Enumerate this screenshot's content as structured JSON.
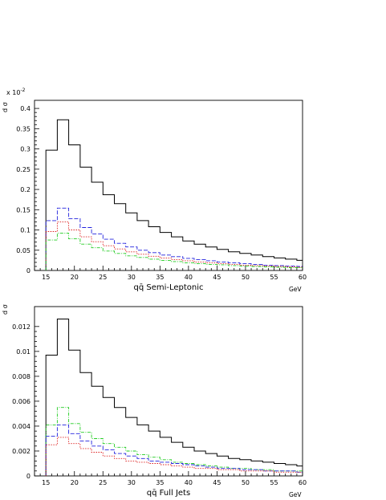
{
  "chart_data": [
    {
      "type": "line",
      "style": "step-histogram",
      "y_title": "d σ",
      "y_multiplier": "x 10^-2",
      "xlabel": "qq̄ Semi-Leptonic",
      "x_unit": "GeV",
      "xlim": [
        13,
        60
      ],
      "ylim": [
        0,
        0.42
      ],
      "x_ticks": [
        15,
        20,
        25,
        30,
        35,
        40,
        45,
        50,
        55,
        60
      ],
      "y_ticks": [
        "0",
        "0.05",
        "0.1",
        "0.15",
        "0.2",
        "0.25",
        "0.3",
        "0.35",
        "0.4"
      ],
      "y_tick_values": [
        0,
        0.05,
        0.1,
        0.15,
        0.2,
        0.25,
        0.3,
        0.35,
        0.4
      ],
      "bin_edges": [
        15,
        17,
        19,
        21,
        23,
        25,
        27,
        29,
        31,
        33,
        35,
        37,
        39,
        41,
        43,
        45,
        47,
        49,
        51,
        53,
        55,
        57,
        59,
        60
      ],
      "series": [
        {
          "color": "#000000",
          "dash": "",
          "values": [
            0.297,
            0.372,
            0.31,
            0.255,
            0.218,
            0.187,
            0.165,
            0.142,
            0.123,
            0.108,
            0.094,
            0.083,
            0.073,
            0.065,
            0.058,
            0.052,
            0.046,
            0.042,
            0.038,
            0.034,
            0.031,
            0.028,
            0.025
          ]
        },
        {
          "color": "#2222dd",
          "dash": "5,2",
          "values": [
            0.123,
            0.154,
            0.128,
            0.106,
            0.09,
            0.077,
            0.067,
            0.058,
            0.05,
            0.044,
            0.038,
            0.034,
            0.03,
            0.027,
            0.024,
            0.021,
            0.019,
            0.017,
            0.015,
            0.013,
            0.012,
            0.011,
            0.01
          ]
        },
        {
          "color": "#dd2222",
          "dash": "1.5,1.5",
          "values": [
            0.096,
            0.12,
            0.1,
            0.083,
            0.071,
            0.061,
            0.053,
            0.046,
            0.04,
            0.035,
            0.031,
            0.027,
            0.024,
            0.021,
            0.019,
            0.017,
            0.015,
            0.013,
            0.012,
            0.011,
            0.01,
            0.009,
            0.008
          ]
        },
        {
          "color": "#22cc22",
          "dash": "4,1.5,1,1.5",
          "values": [
            0.075,
            0.092,
            0.078,
            0.065,
            0.056,
            0.048,
            0.042,
            0.036,
            0.032,
            0.028,
            0.025,
            0.022,
            0.019,
            0.017,
            0.015,
            0.014,
            0.012,
            0.011,
            0.01,
            0.009,
            0.008,
            0.007,
            0.007
          ]
        }
      ]
    },
    {
      "type": "line",
      "style": "step-histogram",
      "y_title": "d σ",
      "xlabel": "qq̄ Full Jets",
      "x_unit": "GeV",
      "xlim": [
        13,
        60
      ],
      "ylim": [
        0,
        0.0136
      ],
      "x_ticks": [
        15,
        20,
        25,
        30,
        35,
        40,
        45,
        50,
        55,
        60
      ],
      "y_ticks": [
        "0",
        "0.002",
        "0.004",
        "0.006",
        "0.008",
        "0.01",
        "0.012"
      ],
      "y_tick_values": [
        0,
        0.002,
        0.004,
        0.006,
        0.008,
        0.01,
        0.012
      ],
      "bin_edges": [
        15,
        17,
        19,
        21,
        23,
        25,
        27,
        29,
        31,
        33,
        35,
        37,
        39,
        41,
        43,
        45,
        47,
        49,
        51,
        53,
        55,
        57,
        59,
        60
      ],
      "series": [
        {
          "color": "#000000",
          "dash": "",
          "values": [
            0.0097,
            0.0126,
            0.0101,
            0.0083,
            0.0072,
            0.0063,
            0.0055,
            0.0047,
            0.0041,
            0.0036,
            0.0031,
            0.0027,
            0.0023,
            0.002,
            0.0018,
            0.0016,
            0.0014,
            0.0013,
            0.0012,
            0.0011,
            0.001,
            0.0009,
            0.0008
          ]
        },
        {
          "color": "#22cc22",
          "dash": "4,1.5,1,1.5",
          "values": [
            0.0041,
            0.0055,
            0.0042,
            0.0035,
            0.003,
            0.0026,
            0.0023,
            0.002,
            0.0017,
            0.0015,
            0.0013,
            0.0011,
            0.001,
            0.0009,
            0.0008,
            0.0007,
            0.0006,
            0.0006,
            0.0005,
            0.0005,
            0.0004,
            0.0004,
            0.0004
          ]
        },
        {
          "color": "#2222dd",
          "dash": "5,2",
          "values": [
            0.0032,
            0.0041,
            0.0034,
            0.0028,
            0.0024,
            0.0021,
            0.0018,
            0.0016,
            0.0014,
            0.0012,
            0.0011,
            0.001,
            0.0009,
            0.0008,
            0.0007,
            0.0006,
            0.0006,
            0.0005,
            0.0005,
            0.0004,
            0.0004,
            0.0004,
            0.0003
          ]
        },
        {
          "color": "#dd2222",
          "dash": "1.5,1.5",
          "values": [
            0.0025,
            0.0031,
            0.0026,
            0.0022,
            0.0019,
            0.0016,
            0.0014,
            0.0012,
            0.0011,
            0.001,
            0.0009,
            0.0008,
            0.0007,
            0.0006,
            0.0006,
            0.0005,
            0.0005,
            0.0004,
            0.0004,
            0.0004,
            0.0003,
            0.0003,
            0.0003
          ]
        }
      ]
    }
  ]
}
